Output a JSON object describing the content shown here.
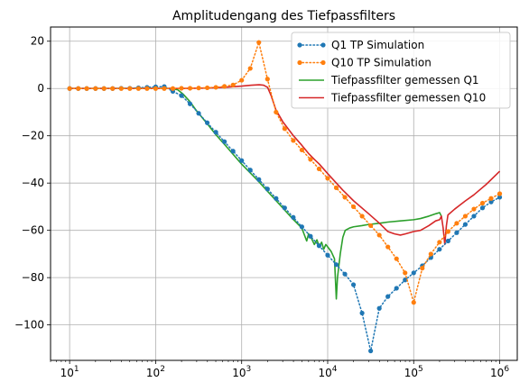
{
  "chart_data": {
    "type": "line",
    "title": "Amplitudengang des Tiefpassfilters",
    "xlabel": "",
    "ylabel": "",
    "xscale": "log",
    "xlim": [
      6.0,
      1600000
    ],
    "ylim": [
      -115,
      26
    ],
    "x_ticks": [
      10,
      100,
      1000,
      10000,
      100000,
      1000000
    ],
    "x_tick_labels": [
      {
        "base": "10",
        "exp": "1"
      },
      {
        "base": "10",
        "exp": "2"
      },
      {
        "base": "10",
        "exp": "3"
      },
      {
        "base": "10",
        "exp": "4"
      },
      {
        "base": "10",
        "exp": "5"
      },
      {
        "base": "10",
        "exp": "6"
      }
    ],
    "y_ticks": [
      20,
      0,
      -20,
      -40,
      -60,
      -80,
      -100
    ],
    "y_tick_labels": [
      "20",
      "0",
      "−20",
      "−40",
      "−60",
      "−80",
      "−100"
    ],
    "grid": true,
    "legend_position": "top-right",
    "colors": {
      "q1_sim": "#1f77b4",
      "q10_sim": "#ff7f0e",
      "q1_meas": "#2ca02c",
      "q10_meas": "#d62728",
      "grid": "#b0b0b0"
    },
    "series": [
      {
        "name": "Q1 TP Simulation",
        "style": "dotted-markers",
        "x": [
          10,
          12.6,
          15.8,
          20,
          25.1,
          31.6,
          39.8,
          50.1,
          63.1,
          79.4,
          100,
          125.9,
          158.5,
          199.5,
          251.2,
          316.2,
          398.1,
          501.2,
          631,
          794.3,
          1000,
          1259,
          1585,
          1995,
          2512,
          3162,
          3981,
          5012,
          6310,
          7943,
          10000,
          12589,
          15849,
          19953,
          25119,
          31623,
          39811,
          50119,
          63096,
          79433,
          100000,
          125893,
          158489,
          199526,
          251189,
          316228,
          398107,
          501187,
          630957,
          794328,
          1000000
        ],
        "y": [
          0,
          0,
          0,
          0,
          0,
          0,
          0.1,
          0.1,
          0.3,
          0.5,
          0.7,
          0.8,
          -1.2,
          -3,
          -6.5,
          -10.5,
          -14.5,
          -18.5,
          -22.5,
          -26.5,
          -30.5,
          -34.5,
          -38.5,
          -42.5,
          -46.5,
          -50.5,
          -54.5,
          -58.5,
          -62.5,
          -66.5,
          -70.5,
          -74.5,
          -78.5,
          -83,
          -95,
          -111,
          -93,
          -88,
          -84.5,
          -81,
          -78,
          -75,
          -71.5,
          -68,
          -64.5,
          -61,
          -57.5,
          -54,
          -50.5,
          -48,
          -46
        ]
      },
      {
        "name": "Q10 TP Simulation",
        "style": "dotted-markers",
        "x": [
          10,
          12.6,
          15.8,
          20,
          25.1,
          31.6,
          39.8,
          50.1,
          63.1,
          79.4,
          100,
          125.9,
          158.5,
          199.5,
          251.2,
          316.2,
          398.1,
          501.2,
          631,
          794.3,
          1000,
          1259,
          1585,
          1995,
          2512,
          3162,
          3981,
          5012,
          6310,
          7943,
          10000,
          12589,
          15849,
          19953,
          25119,
          31623,
          39811,
          50119,
          63096,
          79433,
          100000,
          125893,
          158489,
          199526,
          251189,
          316228,
          398107,
          501187,
          630957,
          794328,
          1000000
        ],
        "y": [
          0,
          0,
          0,
          0,
          0,
          0,
          0,
          0,
          0,
          0,
          0,
          0,
          0,
          0.1,
          0.1,
          0.2,
          0.3,
          0.5,
          0.9,
          1.5,
          3.5,
          8.5,
          19.5,
          4,
          -10,
          -17,
          -22,
          -26,
          -30,
          -34,
          -38,
          -42,
          -46,
          -50,
          -54,
          -58,
          -62,
          -67,
          -72,
          -78,
          -90.5,
          -76,
          -70,
          -65,
          -60.5,
          -57,
          -54,
          -51,
          -48.5,
          -46.5,
          -44.5
        ]
      },
      {
        "name": "Tiefpassfilter gemessen Q1",
        "style": "solid",
        "x": [
          10,
          30,
          60,
          100,
          150,
          180,
          210,
          250,
          300,
          400,
          500,
          700,
          1000,
          1500,
          2000,
          3000,
          4000,
          5000,
          5700,
          6000,
          6400,
          7000,
          7500,
          8000,
          8500,
          9000,
          9500,
          10000,
          11000,
          12000,
          12600,
          13000,
          14000,
          15000,
          16000,
          17000,
          18000,
          20000,
          25000,
          30000,
          40000,
          50000,
          70000,
          100000,
          120000,
          150000,
          180000,
          200000,
          210000
        ],
        "y": [
          0,
          0,
          0,
          0,
          0,
          -0.5,
          -2.5,
          -5.5,
          -9.5,
          -15,
          -19.5,
          -25.5,
          -32,
          -38.5,
          -43.5,
          -50.5,
          -55.5,
          -59,
          -64.5,
          -61.5,
          -63,
          -66,
          -64,
          -67,
          -65,
          -68,
          -66,
          -67,
          -69,
          -72,
          -89,
          -80,
          -70,
          -63,
          -60,
          -59.5,
          -59,
          -58.5,
          -58,
          -57.5,
          -57,
          -56.5,
          -56,
          -55.5,
          -55,
          -54,
          -53,
          -52.5,
          -54
        ]
      },
      {
        "name": "Tiefpassfilter gemessen Q10",
        "style": "solid",
        "x": [
          10,
          50,
          100,
          200,
          400,
          700,
          1000,
          1300,
          1600,
          1800,
          2000,
          2200,
          2500,
          3000,
          4000,
          5000,
          6000,
          7000,
          8000,
          10000,
          15000,
          20000,
          30000,
          40000,
          50000,
          60000,
          70000,
          80000,
          100000,
          120000,
          150000,
          180000,
          200000,
          210000,
          220000,
          230000,
          240000,
          250000,
          300000,
          400000,
          500000,
          700000,
          1000000
        ],
        "y": [
          0,
          0,
          0,
          0,
          0.2,
          0.6,
          1,
          1.4,
          1.6,
          1.4,
          0.5,
          -3,
          -9,
          -14,
          -20,
          -24,
          -27.5,
          -30,
          -32,
          -36,
          -43,
          -47.5,
          -53,
          -57,
          -60.5,
          -61.5,
          -62,
          -61.5,
          -60.5,
          -60,
          -58,
          -56,
          -55.5,
          -54,
          -59,
          -66,
          -58,
          -53.5,
          -51,
          -47.5,
          -45,
          -40.5,
          -35
        ]
      }
    ]
  }
}
